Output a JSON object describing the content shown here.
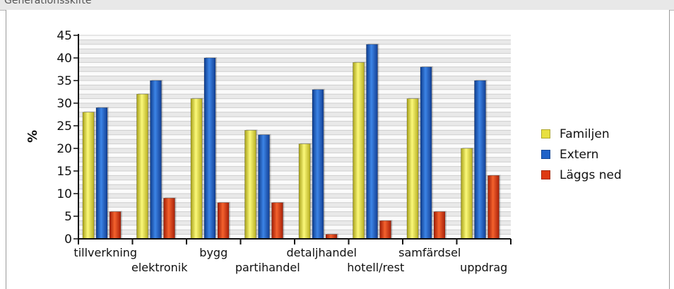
{
  "header": {
    "title": "Generationsskifte"
  },
  "colors": {
    "familjen": "#e8e040",
    "extern": "#1f62c8",
    "laggs_ned": "#de3a12"
  },
  "chart_data": {
    "type": "bar",
    "categories": [
      "tillverkning",
      "elektronik",
      "bygg",
      "partihandel",
      "detaljhandel",
      "hotell/rest",
      "samfärdsel",
      "uppdrag"
    ],
    "series": [
      {
        "name": "Familjen",
        "values": [
          28,
          32,
          31,
          24,
          21,
          39,
          31,
          20
        ]
      },
      {
        "name": "Extern",
        "values": [
          29,
          35,
          40,
          23,
          33,
          43,
          38,
          35
        ]
      },
      {
        "name": "Läggs ned",
        "values": [
          6,
          9,
          8,
          8,
          1,
          4,
          6,
          14
        ]
      }
    ],
    "title": "",
    "xlabel": "",
    "ylabel": "%",
    "ylim": [
      0,
      45
    ],
    "yticks": [
      "0",
      "5",
      "10",
      "15",
      "20",
      "25",
      "30",
      "35",
      "40",
      "45"
    ],
    "grid": true,
    "legend_position": "right"
  }
}
